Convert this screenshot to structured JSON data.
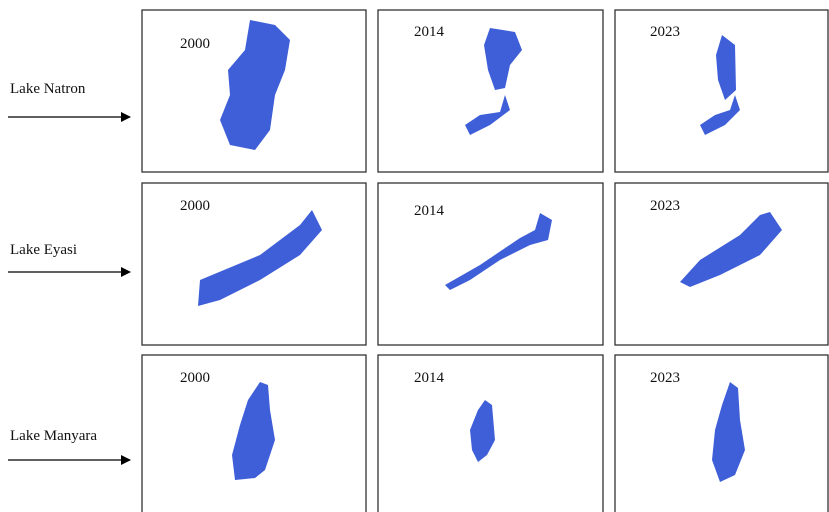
{
  "rows": [
    {
      "label": "Lake Natron",
      "panels": [
        "2000",
        "2014",
        "2023"
      ]
    },
    {
      "label": "Lake Eyasi",
      "panels": [
        "2000",
        "2014",
        "2023"
      ]
    },
    {
      "label": "Lake Manyara",
      "panels": [
        "2000",
        "2014",
        "2023"
      ]
    }
  ]
}
